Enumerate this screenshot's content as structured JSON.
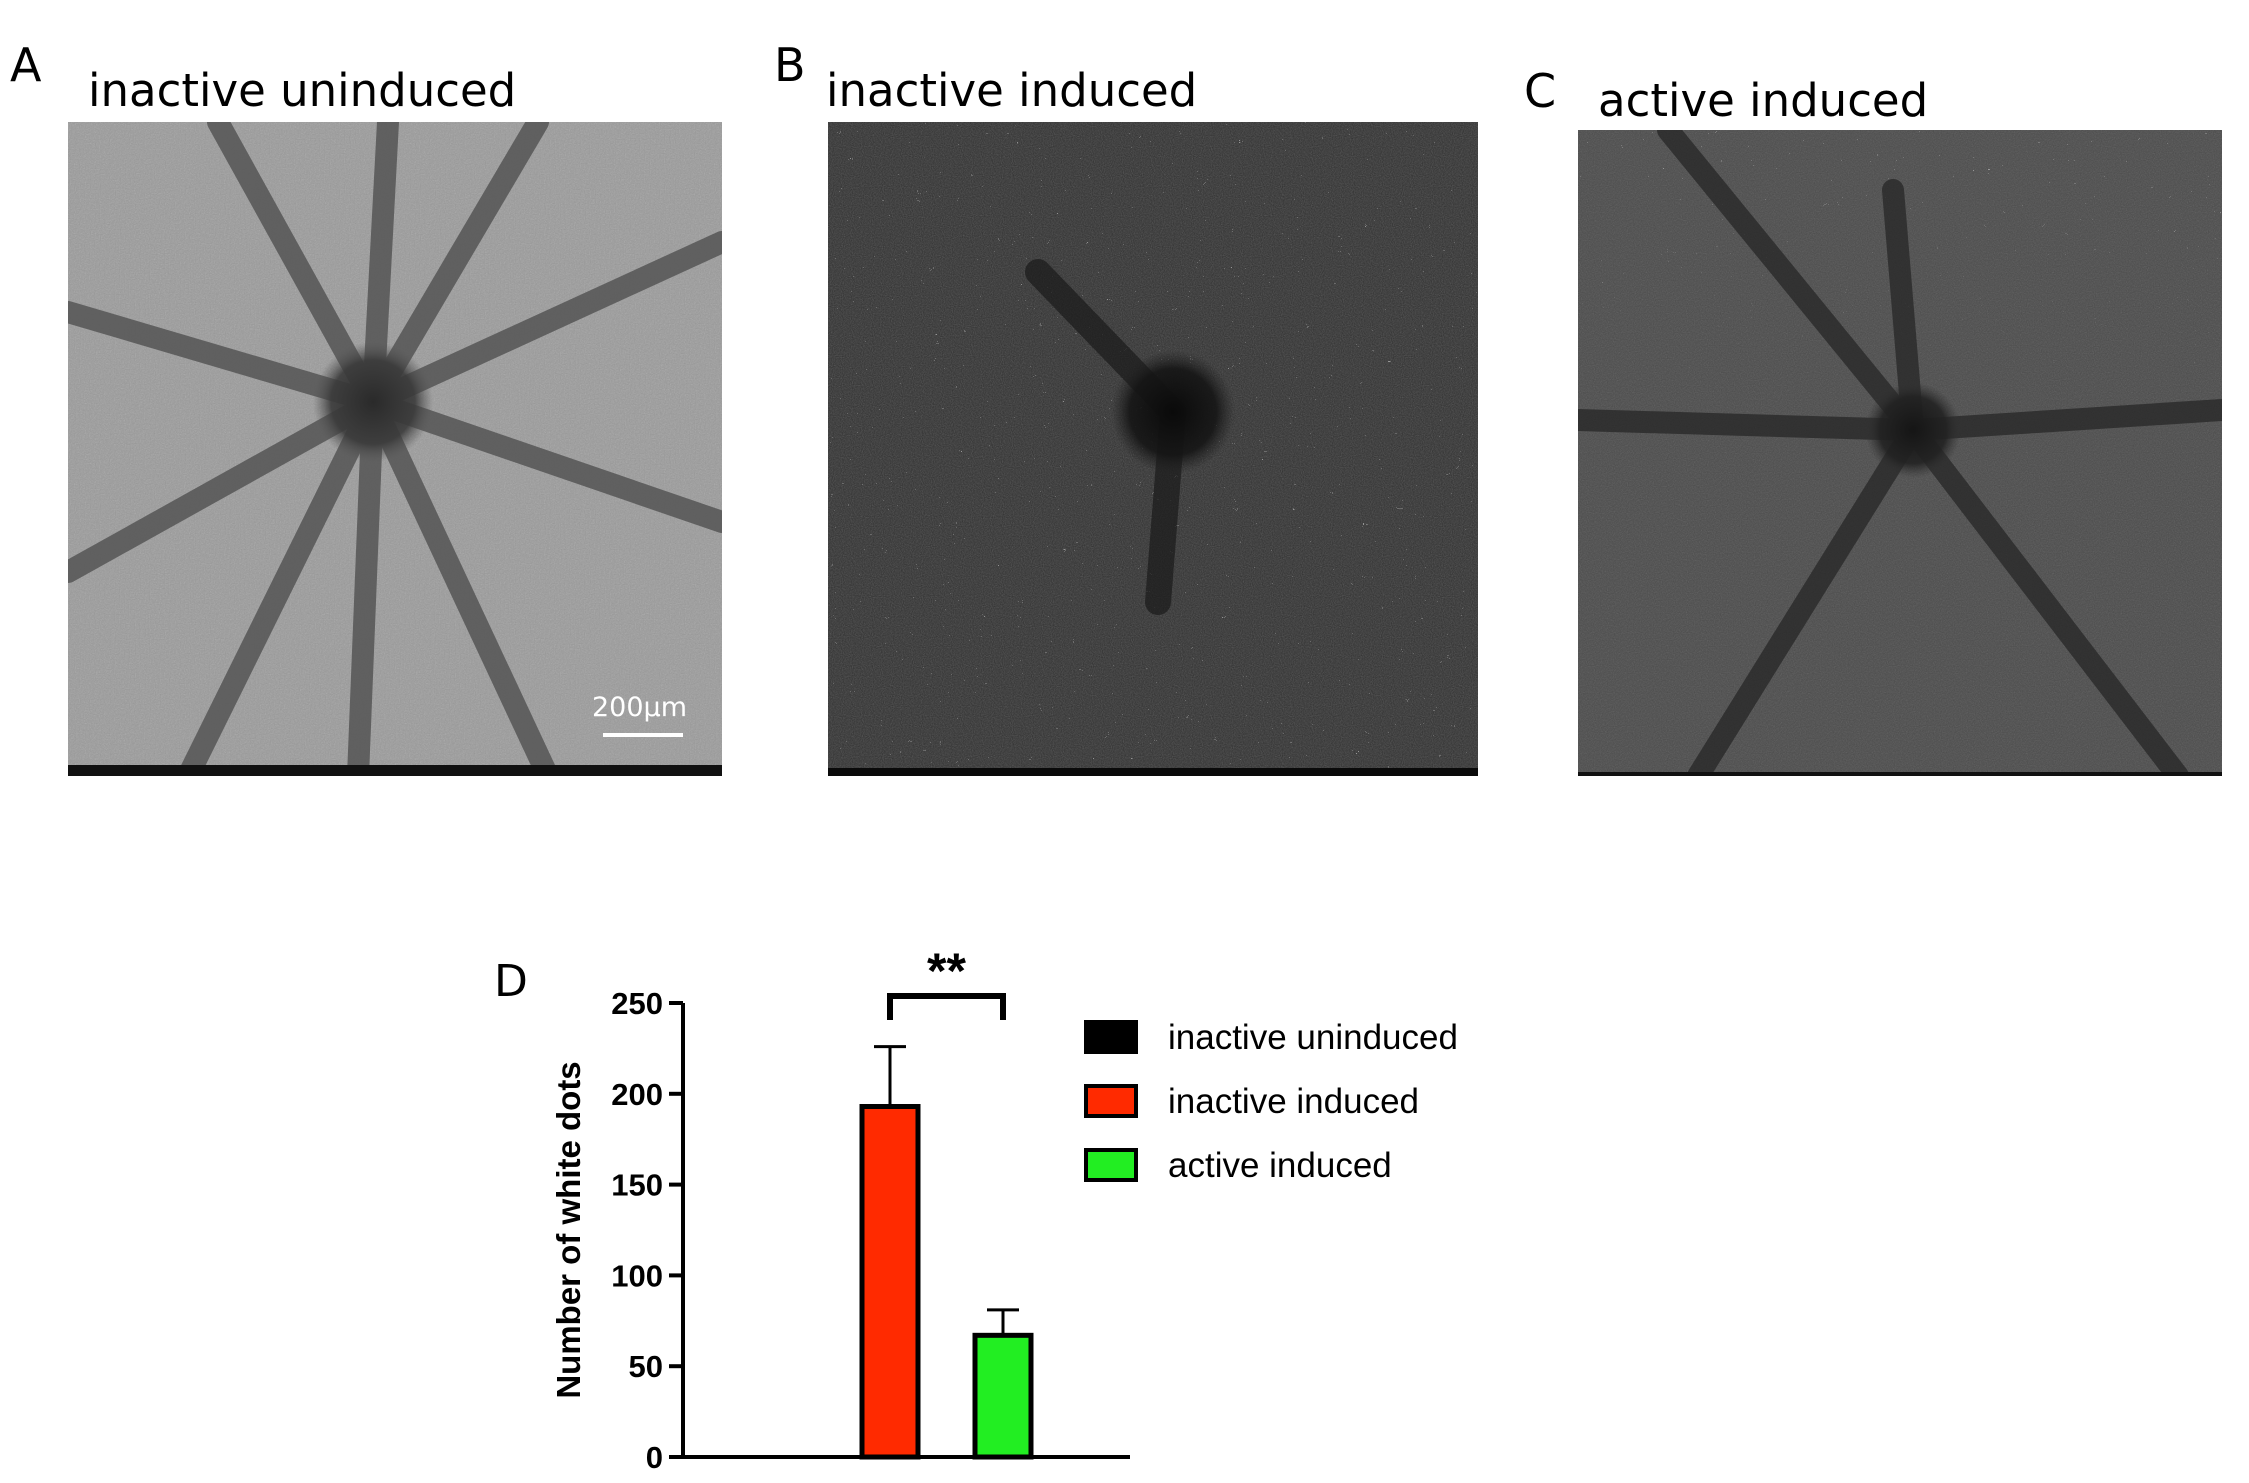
{
  "panels": [
    {
      "letter": "A",
      "title": "inactive uninduced",
      "scale_bar": "200µm"
    },
    {
      "letter": "B",
      "title": "inactive induced"
    },
    {
      "letter": "C",
      "title": "active induced"
    }
  ],
  "chart_letter": "D",
  "chart_data": {
    "type": "bar",
    "categories": [
      "inactive uninduced",
      "inactive induced",
      "active induced"
    ],
    "values": [
      0,
      193,
      67
    ],
    "errors": [
      0,
      33,
      14
    ],
    "colors": [
      "#000000",
      "#ff2a00",
      "#22ee22"
    ],
    "ylabel": "Number of white dots",
    "ylim": [
      0,
      250
    ],
    "yticks": [
      0,
      50,
      100,
      150,
      200,
      250
    ],
    "legend": [
      "inactive uninduced",
      "inactive induced",
      "active induced"
    ],
    "legend_position": "right",
    "significance": {
      "between": [
        1,
        2
      ],
      "label": "**"
    }
  }
}
